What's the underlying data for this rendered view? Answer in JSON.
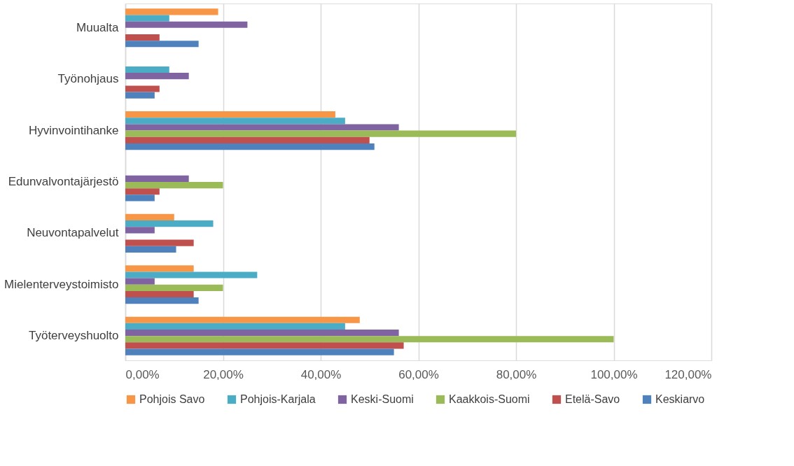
{
  "chart_data": {
    "type": "bar",
    "orientation": "horizontal",
    "categories": [
      "Muualta",
      "Työnohjaus",
      "Hyvinvointihanke",
      "Edunvalvontajärjestö",
      "Neuvontapalvelut",
      "Mielenterveystoimisto",
      "Työterveyshuolto"
    ],
    "series": [
      {
        "name": "Pohjois Savo",
        "color": "#f79646",
        "values": [
          19,
          null,
          43,
          null,
          10,
          14,
          48
        ]
      },
      {
        "name": "Pohjois-Karjala",
        "color": "#4bacc6",
        "values": [
          9,
          9,
          45,
          null,
          18,
          27,
          45
        ]
      },
      {
        "name": "Keski-Suomi",
        "color": "#8064a2",
        "values": [
          25,
          13,
          56,
          13,
          6,
          6,
          56
        ]
      },
      {
        "name": "Kaakkois-Suomi",
        "color": "#9bbb59",
        "values": [
          null,
          null,
          80,
          20,
          null,
          20,
          100
        ]
      },
      {
        "name": "Etelä-Savo",
        "color": "#c0504d",
        "values": [
          7,
          7,
          50,
          7,
          14,
          14,
          57
        ]
      },
      {
        "name": "Keskiarvo",
        "color": "#4f81bd",
        "values": [
          15,
          6,
          51,
          6,
          10.4,
          15,
          55
        ]
      }
    ],
    "xlim": [
      0,
      120
    ],
    "xticks": [
      {
        "value": 0,
        "label": "0,00%"
      },
      {
        "value": 20,
        "label": "20,00%"
      },
      {
        "value": 40,
        "label": "40,00%"
      },
      {
        "value": 60,
        "label": "60,00%"
      },
      {
        "value": 80,
        "label": "80,00%"
      },
      {
        "value": 100,
        "label": "100,00%"
      },
      {
        "value": 120,
        "label": "120,00%"
      }
    ],
    "grid": "x",
    "legend": "bottom"
  }
}
